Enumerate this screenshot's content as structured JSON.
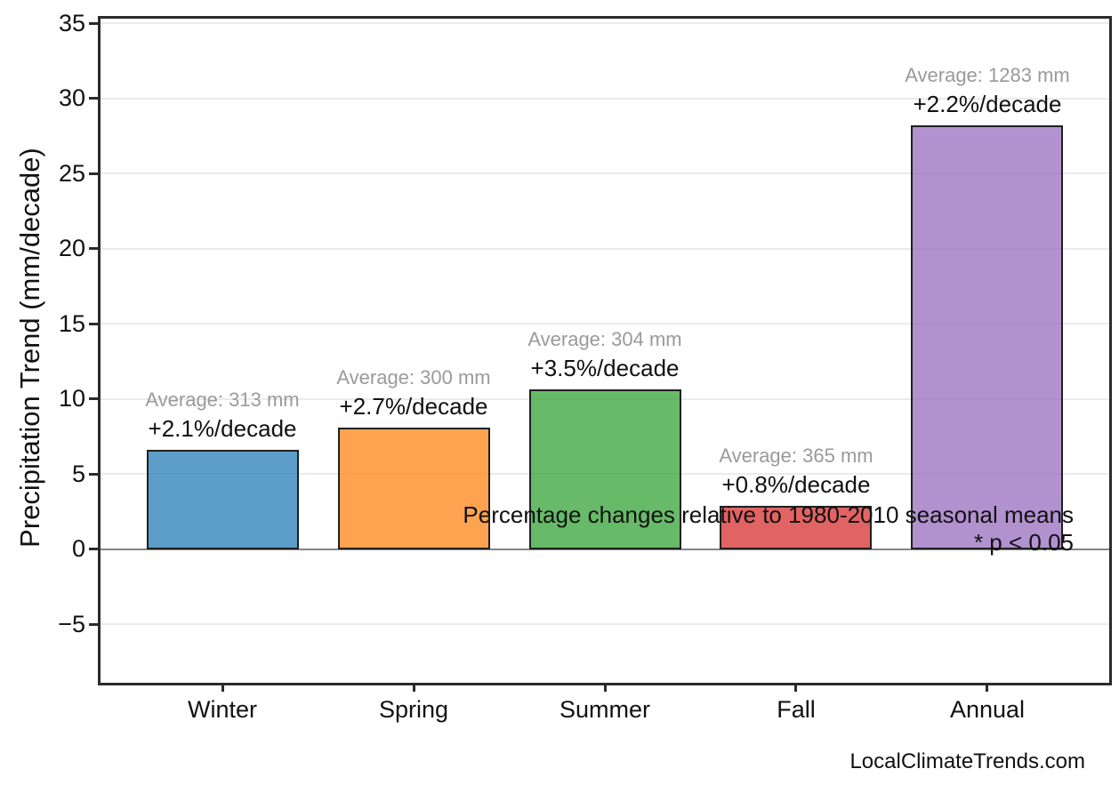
{
  "footer": {
    "credit": "LocalClimateTrends.com"
  },
  "chart_data": {
    "type": "bar",
    "title": "",
    "xlabel": "",
    "ylabel": "Precipitation Trend (mm/decade)",
    "categories": [
      "Winter",
      "Spring",
      "Summer",
      "Fall",
      "Annual"
    ],
    "values": [
      6.6,
      8.1,
      10.6,
      2.9,
      28.2
    ],
    "averages_mm": [
      313,
      300,
      304,
      365,
      1283
    ],
    "pct_change_per_decade": [
      2.1,
      2.7,
      3.5,
      0.8,
      2.2
    ],
    "bar_labels": [
      {
        "avg": "Average: 313 mm",
        "pct": "+2.1%/decade"
      },
      {
        "avg": "Average: 300 mm",
        "pct": "+2.7%/decade"
      },
      {
        "avg": "Average: 304 mm",
        "pct": "+3.5%/decade"
      },
      {
        "avg": "Average: 365 mm",
        "pct": "+0.8%/decade"
      },
      {
        "avg": "Average: 1283 mm",
        "pct": "+2.2%/decade"
      }
    ],
    "yticks": [
      35,
      30,
      25,
      20,
      15,
      10,
      5,
      0,
      -5
    ],
    "ytick_labels": [
      "35",
      "30",
      "25",
      "20",
      "15",
      "10",
      "5",
      "0",
      "−5"
    ],
    "ylim": [
      -8.9,
      35.3
    ],
    "grid": "horizontal",
    "legend": "none",
    "annotations": [
      "Percentage changes relative to 1980-2010 seasonal means",
      "* p < 0.05"
    ],
    "bar_colors": [
      "rgba(31,119,180,0.72)",
      "rgba(255,127,14,0.72)",
      "rgba(44,160,44,0.72)",
      "rgba(214,39,40,0.72)",
      "rgba(148,103,189,0.72)"
    ],
    "bar_edge_color": "#1f1f1f",
    "grid_color": "#ebebeb",
    "zero_line_color": "#858585",
    "avg_label_color": "#9a9a9a",
    "pct_label_color": "#111111"
  }
}
